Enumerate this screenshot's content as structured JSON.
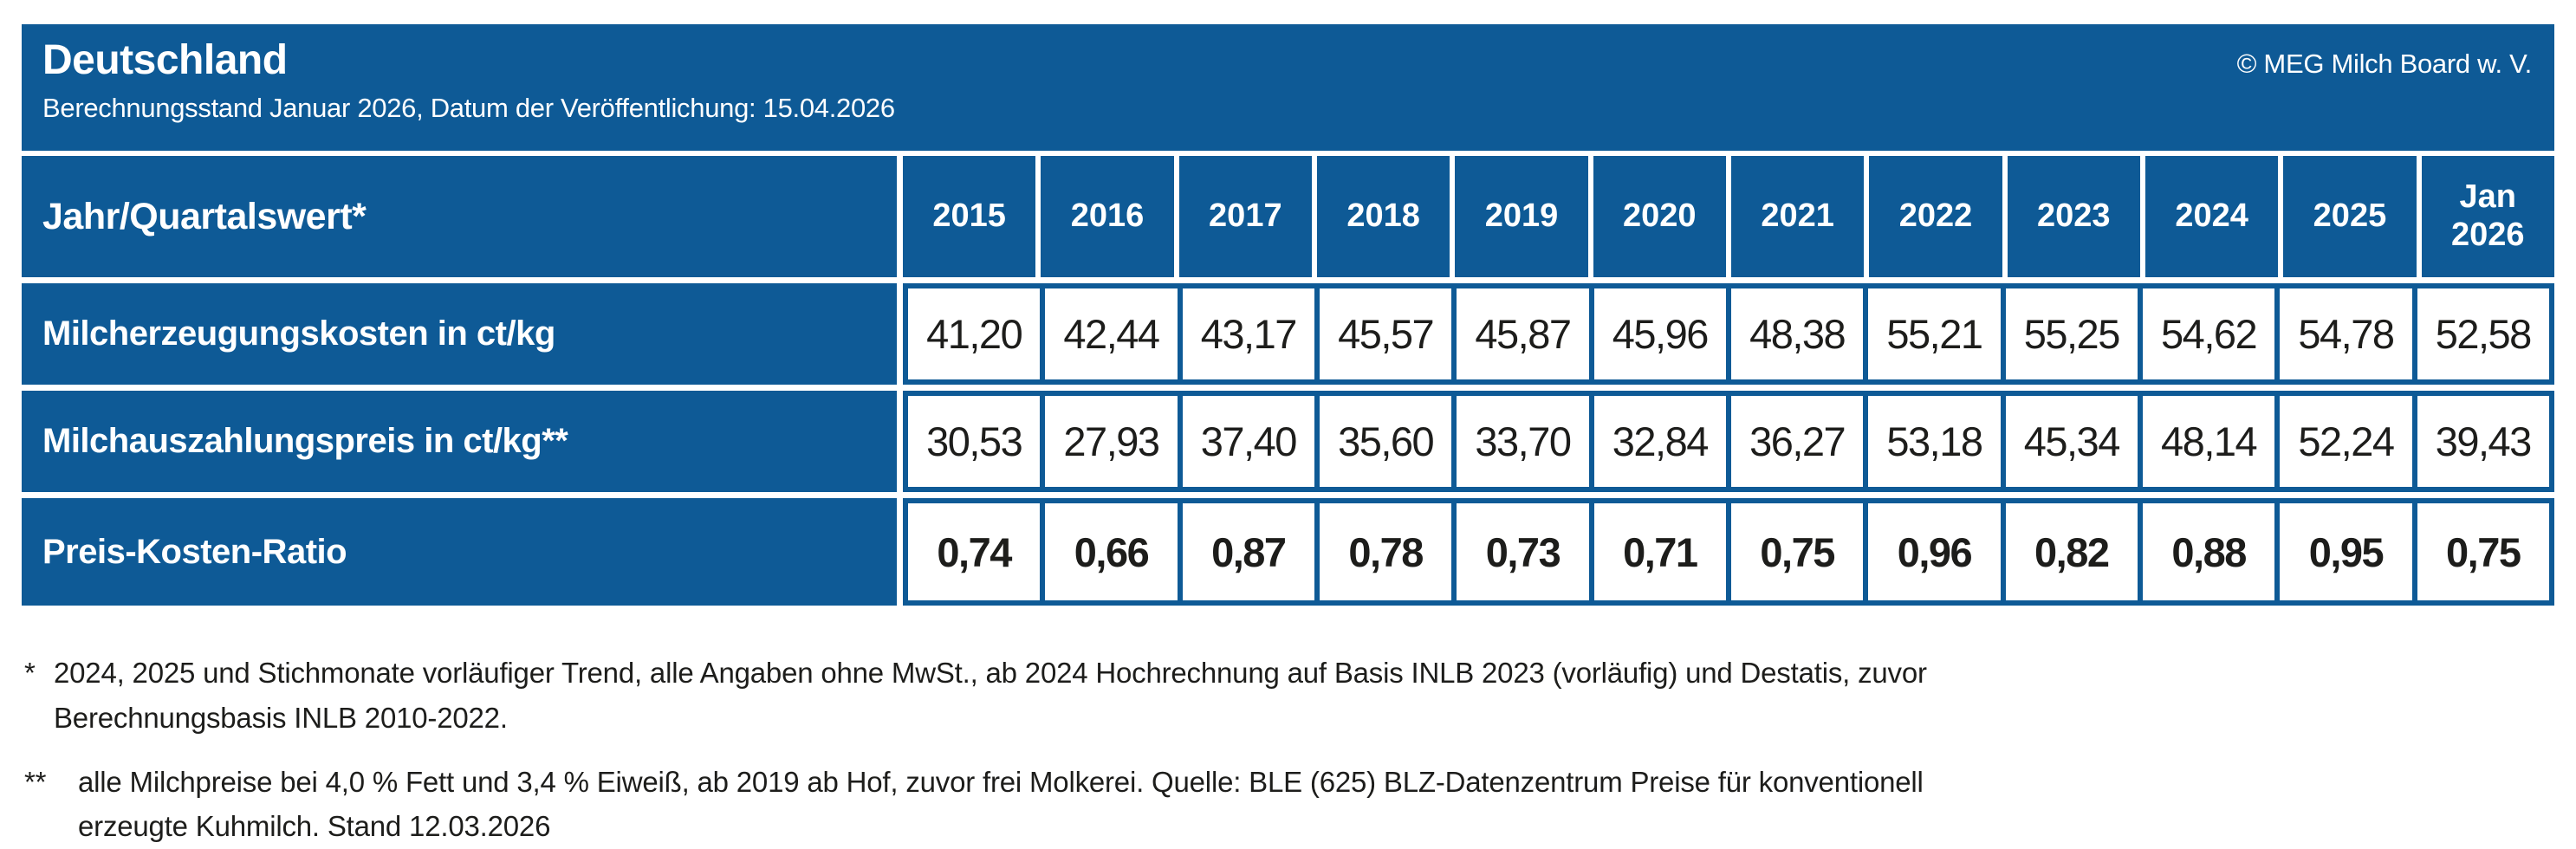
{
  "colors": {
    "brand_blue": "#0E5A96",
    "ink": "#1D1D1B",
    "background": "#FFFFFF"
  },
  "header": {
    "title": "Deutschland",
    "subtitle": "Berechnungsstand Januar 2026, Datum der Veröffentlichung: 15.04.2026",
    "copyright": "© MEG Milch Board w. V."
  },
  "table": {
    "corner_label": "Jahr/Quartalswert*",
    "columns": [
      "2015",
      "2016",
      "2017",
      "2018",
      "2019",
      "2020",
      "2021",
      "2022",
      "2023",
      "2024",
      "2025",
      "Jan 2026"
    ],
    "rows": [
      {
        "label": "Milcherzeugungskosten in ct/kg",
        "bold_values": false,
        "values": [
          "41,20",
          "42,44",
          "43,17",
          "45,57",
          "45,87",
          "45,96",
          "48,38",
          "55,21",
          "55,25",
          "54,62",
          "54,78",
          "52,58"
        ]
      },
      {
        "label": "Milchauszahlungspreis in ct/kg**",
        "bold_values": false,
        "values": [
          "30,53",
          "27,93",
          "37,40",
          "35,60",
          "33,70",
          "32,84",
          "36,27",
          "53,18",
          "45,34",
          "48,14",
          "52,24",
          "39,43"
        ]
      },
      {
        "label": "Preis-Kosten-Ratio",
        "bold_values": true,
        "values": [
          "0,74",
          "0,66",
          "0,87",
          "0,78",
          "0,73",
          "0,71",
          "0,75",
          "0,96",
          "0,82",
          "0,88",
          "0,95",
          "0,75"
        ]
      }
    ]
  },
  "footnotes": [
    {
      "marker": "*",
      "text": "2024, 2025 und Stichmonate vorläufiger Trend, alle Angaben ohne MwSt., ab 2024 Hochrechnung auf Basis INLB 2023 (vorläufig) und Destatis, zuvor\nBerechnungsbasis INLB 2010-2022."
    },
    {
      "marker": "**",
      "text": "alle Milchpreise bei 4,0 % Fett und 3,4 % Eiweiß, ab 2019 ab Hof, zuvor frei Molkerei. Quelle: BLE (625) BLZ-Datenzentrum Preise für konventionell\nerzeugte Kuhmilch. Stand 12.03.2026"
    }
  ],
  "chart_data": {
    "type": "table",
    "title": "Deutschland",
    "subtitle": "Berechnungsstand Januar 2026, Datum der Veröffentlichung: 15.04.2026",
    "categories": [
      "2015",
      "2016",
      "2017",
      "2018",
      "2019",
      "2020",
      "2021",
      "2022",
      "2023",
      "2024",
      "2025",
      "Jan 2026"
    ],
    "series": [
      {
        "name": "Milcherzeugungskosten in ct/kg",
        "values": [
          41.2,
          42.44,
          43.17,
          45.57,
          45.87,
          45.96,
          48.38,
          55.21,
          55.25,
          54.62,
          54.78,
          52.58
        ]
      },
      {
        "name": "Milchauszahlungspreis in ct/kg**",
        "values": [
          30.53,
          27.93,
          37.4,
          35.6,
          33.7,
          32.84,
          36.27,
          53.18,
          45.34,
          48.14,
          52.24,
          39.43
        ]
      },
      {
        "name": "Preis-Kosten-Ratio",
        "values": [
          0.74,
          0.66,
          0.87,
          0.78,
          0.73,
          0.71,
          0.75,
          0.96,
          0.82,
          0.88,
          0.95,
          0.75
        ]
      }
    ],
    "units": {
      "row_1": "ct/kg",
      "row_2": "ct/kg",
      "row_3": "ratio"
    },
    "source": "MEG Milch Board w. V."
  }
}
